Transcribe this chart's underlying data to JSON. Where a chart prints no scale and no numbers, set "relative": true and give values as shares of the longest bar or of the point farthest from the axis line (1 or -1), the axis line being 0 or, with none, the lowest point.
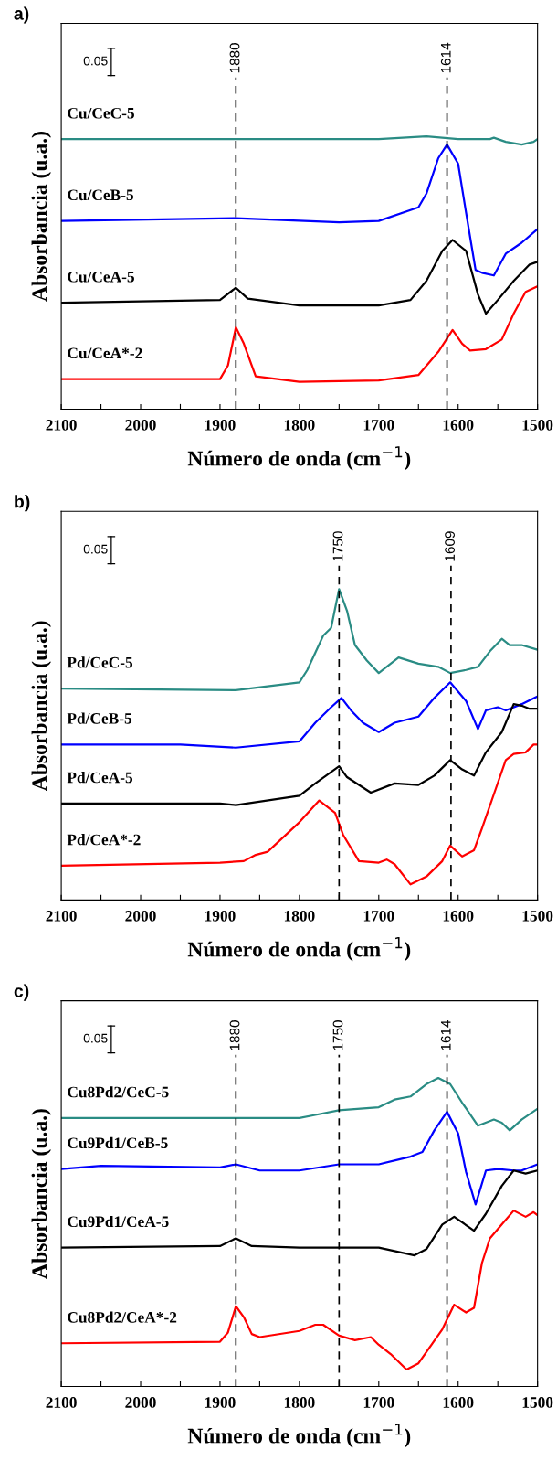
{
  "chart_data": [
    {
      "type": "line",
      "title": "a)",
      "xlabel": "Número de onda (cm$^{−1}$)",
      "ylabel": "Absorbancia (u.a.)",
      "relative": true,
      "xlim": [
        2100,
        1500
      ],
      "xticks": [
        2100,
        {
          "value": 2050,
          "label": null
        },
        2000,
        {
          "value": 1950,
          "label": null
        },
        1900,
        {
          "value": 1850,
          "label": null
        },
        1800,
        {
          "value": 1750,
          "label": null
        },
        1700,
        {
          "value": 1650,
          "label": null
        },
        1600,
        {
          "value": 1550,
          "label": null
        },
        1500
      ],
      "tick_labels": "x",
      "grid": false,
      "legend": false,
      "line_style": "solid",
      "marker": "none",
      "annotations": [
        "0.05"
      ],
      "ref_lines": [
        {
          "axis": "x",
          "value": 1880,
          "label": "1880",
          "color": "#000000",
          "line_style": "dashed"
        },
        {
          "axis": "x",
          "value": 1614,
          "label": "1614",
          "color": "#000000",
          "line_style": "dashed"
        }
      ],
      "series": [
        {
          "name": "Cu/CeC-5",
          "color": "#2a8c84",
          "x": [
            2100,
            1900,
            1800,
            1700,
            1640,
            1600,
            1560,
            1555,
            1540,
            1520,
            1505,
            1500
          ],
          "values": [
            0.99,
            0.99,
            0.99,
            0.99,
            1.0,
            0.99,
            0.99,
            0.995,
            0.98,
            0.97,
            0.98,
            0.99
          ]
        },
        {
          "name": "Cu/CeB-5",
          "color": "#0000ff",
          "x": [
            2100,
            1880,
            1750,
            1700,
            1650,
            1640,
            1625,
            1614,
            1600,
            1590,
            1578,
            1570,
            1555,
            1540,
            1520,
            1500
          ],
          "values": [
            0.69,
            0.7,
            0.685,
            0.69,
            0.74,
            0.79,
            0.92,
            0.97,
            0.9,
            0.72,
            0.51,
            0.5,
            0.49,
            0.57,
            0.61,
            0.66
          ]
        },
        {
          "name": "Cu/CeA-5",
          "color": "#000000",
          "x": [
            2100,
            1900,
            1880,
            1865,
            1800,
            1700,
            1660,
            1640,
            1620,
            1607,
            1590,
            1575,
            1565,
            1550,
            1530,
            1510,
            1500
          ],
          "values": [
            0.39,
            0.4,
            0.445,
            0.405,
            0.38,
            0.38,
            0.4,
            0.47,
            0.58,
            0.62,
            0.58,
            0.42,
            0.35,
            0.4,
            0.47,
            0.53,
            0.54
          ]
        },
        {
          "name": "Cu/CeA*-2",
          "color": "#ff0000",
          "x": [
            2100,
            1900,
            1890,
            1880,
            1870,
            1855,
            1800,
            1700,
            1650,
            1625,
            1607,
            1595,
            1585,
            1565,
            1545,
            1530,
            1515,
            1500
          ],
          "values": [
            0.11,
            0.11,
            0.16,
            0.3,
            0.24,
            0.12,
            0.1,
            0.105,
            0.125,
            0.21,
            0.29,
            0.24,
            0.215,
            0.22,
            0.255,
            0.35,
            0.43,
            0.45
          ]
        }
      ]
    },
    {
      "type": "line",
      "title": "b)",
      "xlabel": "Número de onda (cm$^{−1}$)",
      "ylabel": "Absorbancia (u.a.)",
      "relative": true,
      "xlim": [
        2100,
        1500
      ],
      "xticks": [
        2100,
        {
          "value": 2050,
          "label": null
        },
        2000,
        {
          "value": 1950,
          "label": null
        },
        1900,
        {
          "value": 1850,
          "label": null
        },
        1800,
        {
          "value": 1750,
          "label": null
        },
        1700,
        {
          "value": 1650,
          "label": null
        },
        1600,
        {
          "value": 1550,
          "label": null
        },
        1500
      ],
      "tick_labels": "x",
      "grid": false,
      "legend": false,
      "line_style": "solid",
      "marker": "none",
      "annotations": [
        "0.05"
      ],
      "ref_lines": [
        {
          "axis": "x",
          "value": 1750,
          "label": "1750",
          "color": "#000000",
          "line_style": "dashed"
        },
        {
          "axis": "x",
          "value": 1609,
          "label": "1609",
          "color": "#000000",
          "line_style": "dashed"
        }
      ],
      "series": [
        {
          "name": "Pd/CeC-5",
          "color": "#2a8c84",
          "x": [
            2100,
            1880,
            1800,
            1790,
            1770,
            1760,
            1750,
            1740,
            1730,
            1715,
            1700,
            1685,
            1675,
            1650,
            1625,
            1610,
            1590,
            1575,
            1560,
            1545,
            1535,
            1520,
            1500
          ],
          "values": [
            0.68,
            0.675,
            0.7,
            0.74,
            0.85,
            0.875,
            1.0,
            0.93,
            0.82,
            0.77,
            0.73,
            0.76,
            0.78,
            0.76,
            0.75,
            0.73,
            0.74,
            0.75,
            0.8,
            0.84,
            0.82,
            0.82,
            0.805
          ]
        },
        {
          "name": "Pd/CeB-5",
          "color": "#0000ff",
          "x": [
            2100,
            1950,
            1880,
            1800,
            1780,
            1760,
            1747,
            1735,
            1720,
            1700,
            1680,
            1650,
            1630,
            1610,
            1590,
            1575,
            1565,
            1550,
            1540,
            1520,
            1500
          ],
          "values": [
            0.5,
            0.5,
            0.49,
            0.51,
            0.57,
            0.62,
            0.65,
            0.61,
            0.57,
            0.54,
            0.57,
            0.59,
            0.65,
            0.7,
            0.64,
            0.55,
            0.61,
            0.62,
            0.61,
            0.63,
            0.655
          ]
        },
        {
          "name": "Pd/CeA-5",
          "color": "#000000",
          "x": [
            2100,
            1900,
            1880,
            1800,
            1780,
            1750,
            1740,
            1710,
            1680,
            1650,
            1630,
            1610,
            1595,
            1580,
            1565,
            1545,
            1530,
            1520,
            1510,
            1500
          ],
          "values": [
            0.31,
            0.31,
            0.305,
            0.335,
            0.375,
            0.43,
            0.395,
            0.345,
            0.375,
            0.37,
            0.4,
            0.45,
            0.42,
            0.4,
            0.475,
            0.54,
            0.63,
            0.625,
            0.615,
            0.615
          ]
        },
        {
          "name": "Pd/CeA*-2",
          "color": "#ff0000",
          "x": [
            2100,
            1900,
            1870,
            1855,
            1840,
            1800,
            1775,
            1755,
            1745,
            1725,
            1700,
            1690,
            1680,
            1660,
            1640,
            1620,
            1610,
            1595,
            1580,
            1570,
            1555,
            1540,
            1530,
            1515,
            1505,
            1500
          ],
          "values": [
            0.11,
            0.12,
            0.125,
            0.145,
            0.155,
            0.25,
            0.32,
            0.28,
            0.21,
            0.125,
            0.12,
            0.13,
            0.115,
            0.05,
            0.075,
            0.125,
            0.175,
            0.14,
            0.16,
            0.23,
            0.34,
            0.45,
            0.47,
            0.475,
            0.5,
            0.5
          ]
        }
      ]
    },
    {
      "type": "line",
      "title": "c)",
      "xlabel": "Número de onda (cm$^{−1}$)",
      "ylabel": "Absorbancia (u.a.)",
      "relative": true,
      "xlim": [
        2100,
        1500
      ],
      "xticks": [
        2100,
        {
          "value": 2050,
          "label": null
        },
        2000,
        {
          "value": 1950,
          "label": null
        },
        1900,
        {
          "value": 1850,
          "label": null
        },
        1800,
        {
          "value": 1750,
          "label": null
        },
        1700,
        {
          "value": 1650,
          "label": null
        },
        1600,
        {
          "value": 1550,
          "label": null
        },
        1500
      ],
      "tick_labels": "x",
      "grid": false,
      "legend": false,
      "line_style": "solid",
      "marker": "none",
      "annotations": [
        "0.05"
      ],
      "ref_lines": [
        {
          "axis": "x",
          "value": 1880,
          "label": "1880",
          "color": "#000000",
          "line_style": "dashed"
        },
        {
          "axis": "x",
          "value": 1750,
          "label": "1750",
          "color": "#000000",
          "line_style": "dashed"
        },
        {
          "axis": "x",
          "value": 1614,
          "label": "1614",
          "color": "#000000",
          "line_style": "dashed"
        }
      ],
      "series": [
        {
          "name": "Cu8Pd2/CeC-5",
          "color": "#2a8c84",
          "x": [
            2100,
            1900,
            1800,
            1780,
            1750,
            1700,
            1680,
            1660,
            1640,
            1625,
            1610,
            1595,
            1575,
            1555,
            1545,
            1535,
            1520,
            1500
          ],
          "values": [
            0.87,
            0.87,
            0.87,
            0.88,
            0.895,
            0.905,
            0.93,
            0.94,
            0.98,
            1.0,
            0.98,
            0.92,
            0.845,
            0.865,
            0.855,
            0.83,
            0.865,
            0.9
          ]
        },
        {
          "name": "Cu9Pd1/CeB-5",
          "color": "#0000ff",
          "x": [
            2100,
            2050,
            1900,
            1880,
            1850,
            1800,
            1750,
            1700,
            1660,
            1645,
            1630,
            1614,
            1600,
            1590,
            1578,
            1565,
            1550,
            1530,
            1520,
            1500
          ],
          "values": [
            0.705,
            0.715,
            0.71,
            0.72,
            0.7,
            0.7,
            0.72,
            0.72,
            0.745,
            0.76,
            0.83,
            0.89,
            0.82,
            0.695,
            0.59,
            0.7,
            0.705,
            0.7,
            0.7,
            0.72
          ]
        },
        {
          "name": "Cu9Pd1/CeA-5",
          "color": "#000000",
          "x": [
            2100,
            1900,
            1880,
            1860,
            1800,
            1700,
            1655,
            1640,
            1620,
            1605,
            1580,
            1565,
            1545,
            1530,
            1515,
            1500
          ],
          "values": [
            0.45,
            0.455,
            0.48,
            0.455,
            0.45,
            0.45,
            0.425,
            0.445,
            0.525,
            0.55,
            0.505,
            0.56,
            0.65,
            0.7,
            0.69,
            0.7
          ]
        },
        {
          "name": "Cu8Pd2/CeA*-2",
          "color": "#ff0000",
          "x": [
            2100,
            1900,
            1890,
            1880,
            1870,
            1860,
            1850,
            1800,
            1780,
            1770,
            1750,
            1730,
            1710,
            1700,
            1685,
            1665,
            1650,
            1620,
            1605,
            1590,
            1580,
            1570,
            1560,
            1545,
            1530,
            1515,
            1505,
            1500
          ],
          "values": [
            0.14,
            0.145,
            0.175,
            0.26,
            0.225,
            0.17,
            0.16,
            0.18,
            0.2,
            0.2,
            0.165,
            0.15,
            0.16,
            0.135,
            0.105,
            0.055,
            0.075,
            0.185,
            0.265,
            0.24,
            0.255,
            0.4,
            0.48,
            0.525,
            0.57,
            0.55,
            0.565,
            0.555
          ]
        }
      ]
    }
  ]
}
